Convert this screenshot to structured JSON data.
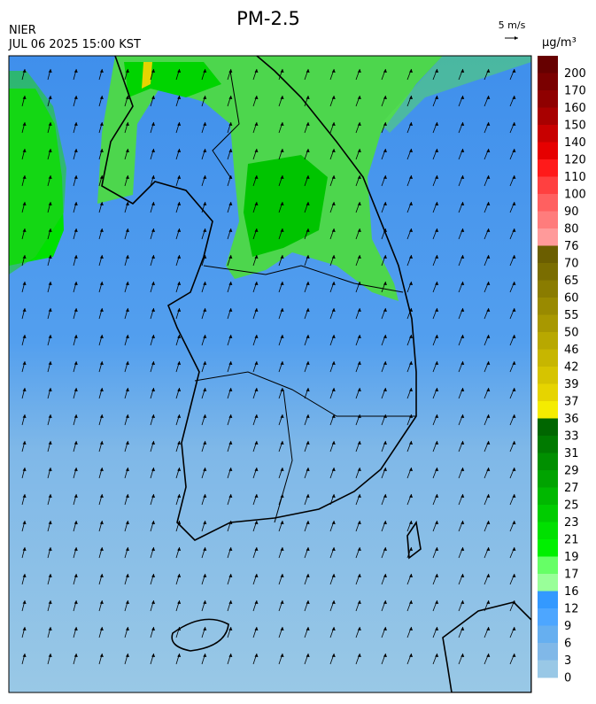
{
  "header": {
    "agency": "NIER",
    "datetime": "JUL 06 2025 15:00 KST",
    "title": "PM-2.5",
    "wind_scale": "5 m/s"
  },
  "legend": {
    "unit": "μg/m³",
    "levels": [
      200,
      170,
      160,
      150,
      140,
      120,
      110,
      100,
      90,
      80,
      76,
      70,
      65,
      60,
      55,
      50,
      46,
      42,
      39,
      37,
      36,
      33,
      31,
      29,
      27,
      25,
      23,
      21,
      19,
      17,
      16,
      12,
      9,
      6,
      3,
      0
    ],
    "colors": [
      "#660000",
      "#7a0000",
      "#8f0000",
      "#a80000",
      "#c80000",
      "#e60000",
      "#ff1a1a",
      "#ff4040",
      "#ff6060",
      "#ff7c7c",
      "#ff9a9a",
      "#6b5e00",
      "#7a6d00",
      "#8a7c00",
      "#998a00",
      "#a89800",
      "#b8a800",
      "#c7b600",
      "#d6c400",
      "#e6d400",
      "#f5ec00",
      "#006600",
      "#007a00",
      "#008f00",
      "#00a300",
      "#00b800",
      "#00cc00",
      "#00e000",
      "#00f000",
      "#66ff66",
      "#99ff99",
      "#3399ff",
      "#4da6ff",
      "#66aff0",
      "#80b8e8",
      "#99c8e6"
    ]
  }
}
